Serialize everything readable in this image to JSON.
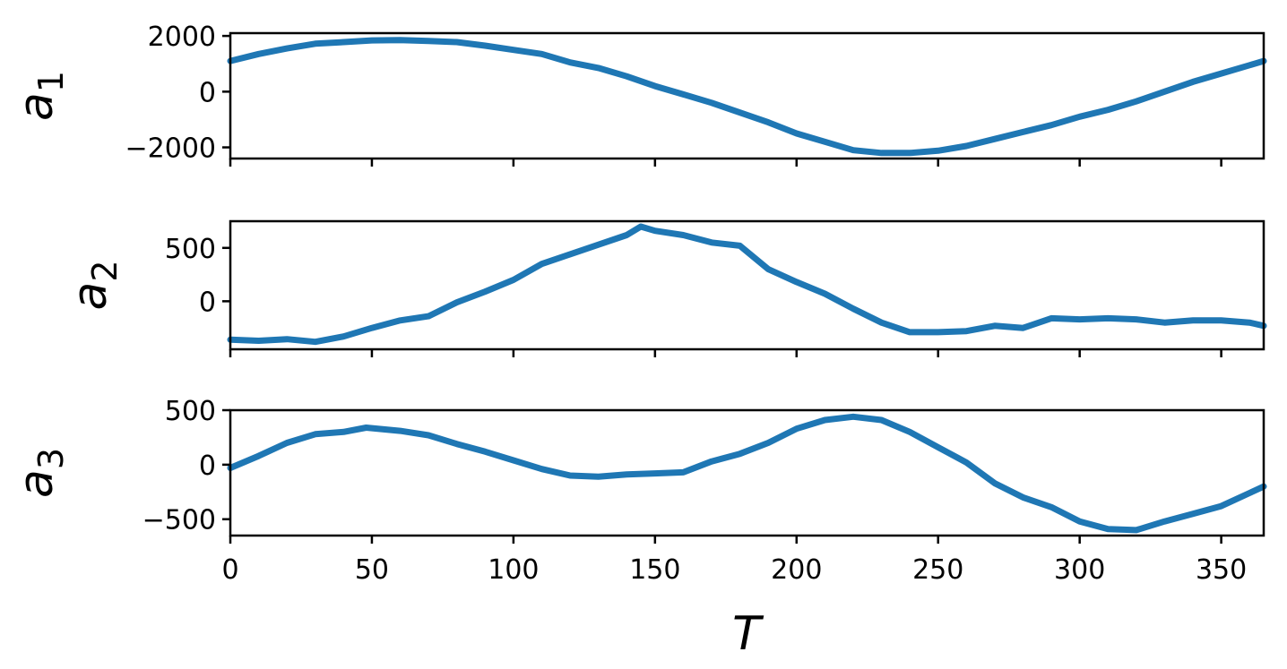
{
  "chart_data": [
    {
      "type": "line",
      "ylabel": "a",
      "ylabel_sub": "1",
      "xlim": [
        0,
        365
      ],
      "ylim": [
        -2400,
        2100
      ],
      "yticks": [
        -2000,
        0,
        2000
      ],
      "ytick_labels": [
        "−2000",
        "0",
        "2000"
      ],
      "color": "#1f77b4",
      "series": [
        {
          "x": [
            0,
            10,
            20,
            30,
            40,
            50,
            60,
            70,
            80,
            90,
            100,
            110,
            120,
            130,
            140,
            150,
            160,
            170,
            180,
            190,
            200,
            210,
            220,
            230,
            240,
            250,
            260,
            270,
            280,
            290,
            300,
            310,
            320,
            330,
            340,
            350,
            360,
            365
          ],
          "y": [
            1100,
            1350,
            1550,
            1720,
            1780,
            1840,
            1850,
            1820,
            1780,
            1650,
            1500,
            1350,
            1050,
            850,
            550,
            200,
            -100,
            -400,
            -750,
            -1100,
            -1500,
            -1800,
            -2100,
            -2200,
            -2200,
            -2120,
            -1950,
            -1700,
            -1450,
            -1200,
            -900,
            -650,
            -350,
            0,
            350,
            650,
            950,
            1100
          ]
        }
      ]
    },
    {
      "type": "line",
      "ylabel": "a",
      "ylabel_sub": "2",
      "xlim": [
        0,
        365
      ],
      "ylim": [
        -450,
        750
      ],
      "yticks": [
        0,
        500
      ],
      "ytick_labels": [
        "0",
        "500"
      ],
      "color": "#1f77b4",
      "series": [
        {
          "x": [
            0,
            10,
            20,
            30,
            40,
            50,
            60,
            70,
            80,
            90,
            100,
            110,
            120,
            130,
            140,
            145,
            150,
            160,
            170,
            180,
            190,
            200,
            210,
            220,
            230,
            240,
            250,
            260,
            270,
            280,
            290,
            300,
            310,
            320,
            330,
            340,
            350,
            360,
            365
          ],
          "y": [
            -360,
            -370,
            -355,
            -380,
            -330,
            -250,
            -180,
            -140,
            -10,
            90,
            200,
            350,
            440,
            530,
            620,
            700,
            660,
            620,
            550,
            520,
            300,
            180,
            70,
            -70,
            -200,
            -290,
            -290,
            -280,
            -230,
            -250,
            -160,
            -170,
            -160,
            -170,
            -200,
            -180,
            -180,
            -200,
            -230
          ]
        }
      ]
    },
    {
      "type": "line",
      "ylabel": "a",
      "ylabel_sub": "3",
      "xlim": [
        0,
        365
      ],
      "ylim": [
        -650,
        500
      ],
      "yticks": [
        -500,
        0,
        500
      ],
      "ytick_labels": [
        "−500",
        "0",
        "500"
      ],
      "color": "#1f77b4",
      "series": [
        {
          "x": [
            0,
            10,
            20,
            30,
            40,
            48,
            60,
            70,
            80,
            90,
            100,
            110,
            120,
            130,
            140,
            150,
            160,
            170,
            180,
            190,
            200,
            210,
            220,
            230,
            240,
            250,
            260,
            270,
            280,
            290,
            300,
            310,
            320,
            330,
            340,
            350,
            360,
            365
          ],
          "y": [
            -30,
            80,
            200,
            280,
            300,
            340,
            310,
            270,
            190,
            120,
            40,
            -40,
            -100,
            -110,
            -90,
            -80,
            -70,
            30,
            100,
            200,
            330,
            410,
            440,
            410,
            300,
            160,
            20,
            -170,
            -300,
            -390,
            -520,
            -590,
            -600,
            -520,
            -450,
            -380,
            -260,
            -200
          ]
        }
      ]
    }
  ],
  "shared_x": {
    "xlabel": "T",
    "xticks": [
      0,
      50,
      100,
      150,
      200,
      250,
      300,
      350
    ],
    "xtick_labels": [
      "0",
      "50",
      "100",
      "150",
      "200",
      "250",
      "300",
      "350"
    ]
  }
}
